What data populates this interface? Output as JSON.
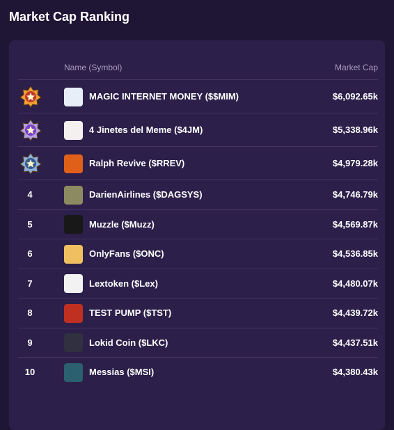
{
  "title": "Market Cap Ranking",
  "table": {
    "columns": [
      "Name (Symbol)",
      "Market Cap"
    ],
    "rows": [
      {
        "name": "MAGIC INTERNET MONEY ($$MIM)",
        "market_cap": "$6,092.65k"
      },
      {
        "name": "4 Jinetes del Meme ($4JM)",
        "market_cap": "$5,338.96k"
      },
      {
        "name": "Ralph Revive ($RREV)",
        "market_cap": "$4,979.28k"
      },
      {
        "rank": 4,
        "name": "DarienAirlines ($DAGSYS)",
        "market_cap": "$4,746.79k"
      },
      {
        "rank": 5,
        "name": "Muzzle ($Muzz)",
        "market_cap": "$4,569.87k"
      },
      {
        "rank": 6,
        "name": "OnlyFans ($ONC)",
        "market_cap": "$4,536.85k"
      },
      {
        "rank": 7,
        "name": "Lextoken ($Lex)",
        "market_cap": "$4,480.07k"
      },
      {
        "rank": 8,
        "name": "TEST PUMP ($TST)",
        "market_cap": "$4,439.72k"
      },
      {
        "rank": 9,
        "name": "Lokid Coin ($LKC)",
        "market_cap": "$4,437.51k"
      },
      {
        "rank": 10,
        "name": "Messias ($MSI)",
        "market_cap": "$4,380.43k"
      }
    ]
  }
}
